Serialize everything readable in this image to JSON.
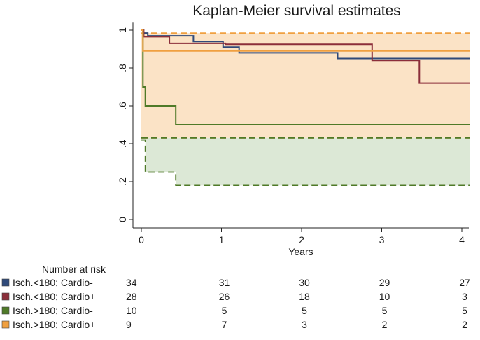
{
  "chart_data": {
    "type": "line",
    "subtype": "kaplan-meier step",
    "title": "Kaplan-Meier survival estimates",
    "xlabel": "Years",
    "ylabel": "",
    "xlim": [
      0,
      4.1
    ],
    "ylim": [
      0,
      1.05
    ],
    "x_ticks": [
      0,
      1,
      2,
      3,
      4
    ],
    "x_tick_labels": [
      "0",
      "1",
      "2",
      "3",
      "4"
    ],
    "y_ticks": [
      0,
      0.2,
      0.4,
      0.6,
      0.8,
      1
    ],
    "y_tick_labels": [
      "0",
      ".2",
      ".4",
      ".6",
      ".8",
      "1"
    ],
    "grid": false,
    "series": [
      {
        "name": "Isch.<180; Cardio-",
        "color": "#2f4a7a",
        "x": [
          0,
          0.02,
          0.08,
          0.65,
          1.02,
          1.22,
          2.45,
          2.88,
          4.1
        ],
        "y": [
          1,
          0.985,
          0.97,
          0.94,
          0.91,
          0.88,
          0.85,
          0.85,
          0.85
        ]
      },
      {
        "name": "Isch.<180; Cardio+",
        "color": "#8b2e3a",
        "x": [
          0,
          0.03,
          0.35,
          1.05,
          2.88,
          3.47,
          4.1
        ],
        "y": [
          1,
          0.965,
          0.93,
          0.925,
          0.84,
          0.72,
          0.72
        ]
      },
      {
        "name": "Isch.>180; Cardio-",
        "color": "#4f7a28",
        "x": [
          0,
          0.02,
          0.05,
          0.43,
          4.1
        ],
        "y": [
          1,
          0.7,
          0.6,
          0.5,
          0.5
        ]
      },
      {
        "name": "Isch.>180; Cardio+",
        "color": "#f0a040",
        "x": [
          0,
          0.02,
          4.1
        ],
        "y": [
          1,
          0.89,
          0.89
        ]
      }
    ],
    "confidence_bands": [
      {
        "series": "Isch.>180; Cardio+",
        "color": "#f0a040",
        "fill": "#fbe3c6",
        "lower": {
          "x": [
            0,
            4.1
          ],
          "y": [
            0.43,
            0.43
          ]
        },
        "upper": {
          "x": [
            0,
            4.1
          ],
          "y": [
            0.985,
            0.985
          ]
        }
      },
      {
        "series": "Isch.>180; Cardio-",
        "color": "#4f7a28",
        "fill": "#dce8d6",
        "lower": {
          "x": [
            0,
            0.05,
            0.43,
            4.1
          ],
          "y": [
            0.42,
            0.25,
            0.18,
            0.18
          ]
        },
        "upper": {
          "x": [
            0,
            4.1
          ],
          "y": [
            0.43,
            0.43
          ]
        }
      }
    ],
    "number_at_risk": {
      "title": "Number at risk",
      "times": [
        0,
        1,
        2,
        3,
        4
      ],
      "rows": [
        {
          "label": "Isch.<180; Cardio-",
          "color": "#2f4a7a",
          "counts": [
            34,
            31,
            30,
            29,
            27
          ]
        },
        {
          "label": "Isch.<180; Cardio+",
          "color": "#8b2e3a",
          "counts": [
            28,
            26,
            18,
            10,
            3
          ]
        },
        {
          "label": "Isch.>180; Cardio-",
          "color": "#4f7a28",
          "counts": [
            10,
            5,
            5,
            5,
            5
          ]
        },
        {
          "label": "Isch.>180; Cardio+",
          "color": "#f0a040",
          "counts": [
            9,
            7,
            3,
            2,
            2
          ]
        }
      ]
    }
  }
}
